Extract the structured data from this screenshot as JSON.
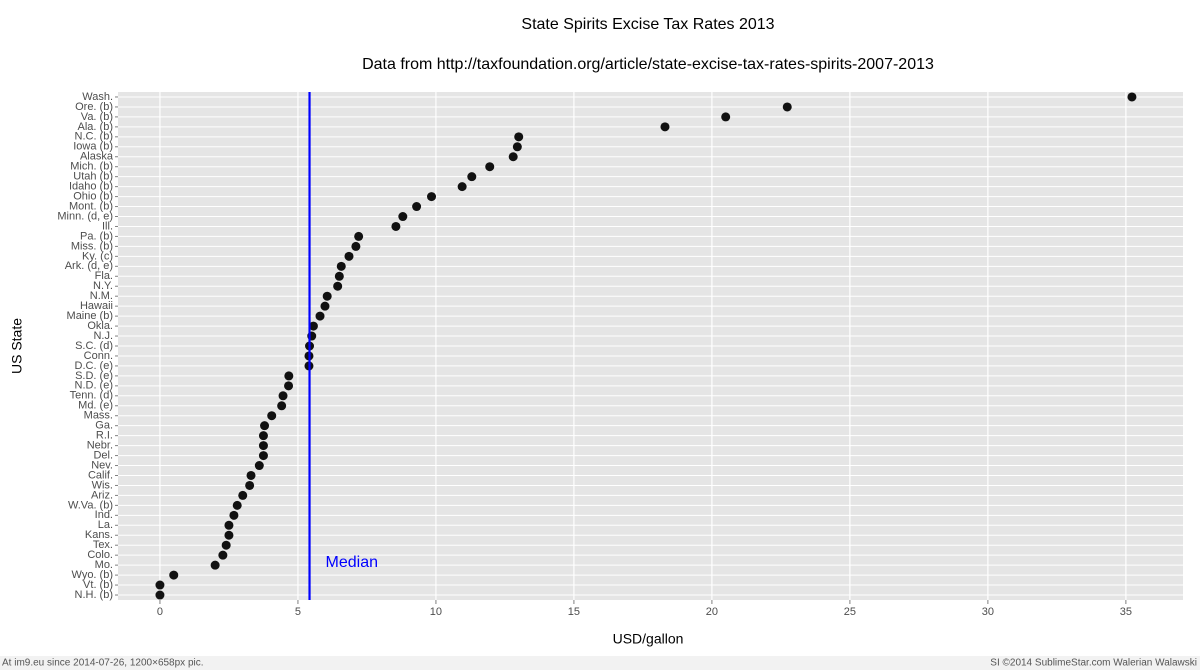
{
  "chart_data": {
    "type": "dot",
    "title": "State Spirits Excise Tax Rates 2013",
    "subtitle": "Data from http://taxfoundation.org/article/state-excise-tax-rates-spirits-2007-2013",
    "xlabel": "USD/gallon",
    "ylabel": "US State",
    "categories": [
      "Wash.",
      "Ore. (b)",
      "Va. (b)",
      "Ala. (b)",
      "N.C. (b)",
      "Iowa (b)",
      "Alaska",
      "Mich. (b)",
      "Utah (b)",
      "Idaho (b)",
      "Ohio (b)",
      "Mont. (b)",
      "Minn. (d, e)",
      "Ill.",
      "Pa. (b)",
      "Miss. (b)",
      "Ky. (c)",
      "Ark. (d, e)",
      "Fla.",
      "N.Y.",
      "N.M.",
      "Hawaii",
      "Maine (b)",
      "Okla.",
      "N.J.",
      "S.C. (d)",
      "Conn.",
      "D.C. (e)",
      "S.D. (e)",
      "N.D. (e)",
      "Tenn. (d)",
      "Md. (e)",
      "Mass.",
      "Ga.",
      "R.I.",
      "Nebr.",
      "Del.",
      "Nev.",
      "Calif.",
      "Wis.",
      "Ariz.",
      "W.Va. (b)",
      "Ind.",
      "La.",
      "Kans.",
      "Tex.",
      "Colo.",
      "Mo.",
      "Wyo. (b)",
      "Vt. (b)",
      "N.H. (b)"
    ],
    "values": [
      35.22,
      22.73,
      20.5,
      18.3,
      13.0,
      12.95,
      12.8,
      11.95,
      11.3,
      10.95,
      9.84,
      9.3,
      8.8,
      8.55,
      7.2,
      7.1,
      6.85,
      6.57,
      6.5,
      6.44,
      6.06,
      5.98,
      5.8,
      5.56,
      5.5,
      5.42,
      5.4,
      5.4,
      4.67,
      4.66,
      4.46,
      4.41,
      4.05,
      3.79,
      3.75,
      3.75,
      3.75,
      3.6,
      3.3,
      3.25,
      3.0,
      2.8,
      2.68,
      2.5,
      2.5,
      2.4,
      2.28,
      2.0,
      0.5,
      0,
      0
    ],
    "color": "#111111",
    "median": {
      "value": 5.42,
      "label": "Median",
      "color": "#0000ff"
    },
    "xlim": [
      -1.52,
      37.07
    ],
    "xticks": [
      0,
      5,
      10,
      15,
      20,
      25,
      30,
      35
    ],
    "grid": true
  },
  "footer": {
    "left": "At im9.eu since 2014-07-26, 1200×658px pic.",
    "right": "SI ©2014 SublimeStar.com Walerian Walawski"
  }
}
